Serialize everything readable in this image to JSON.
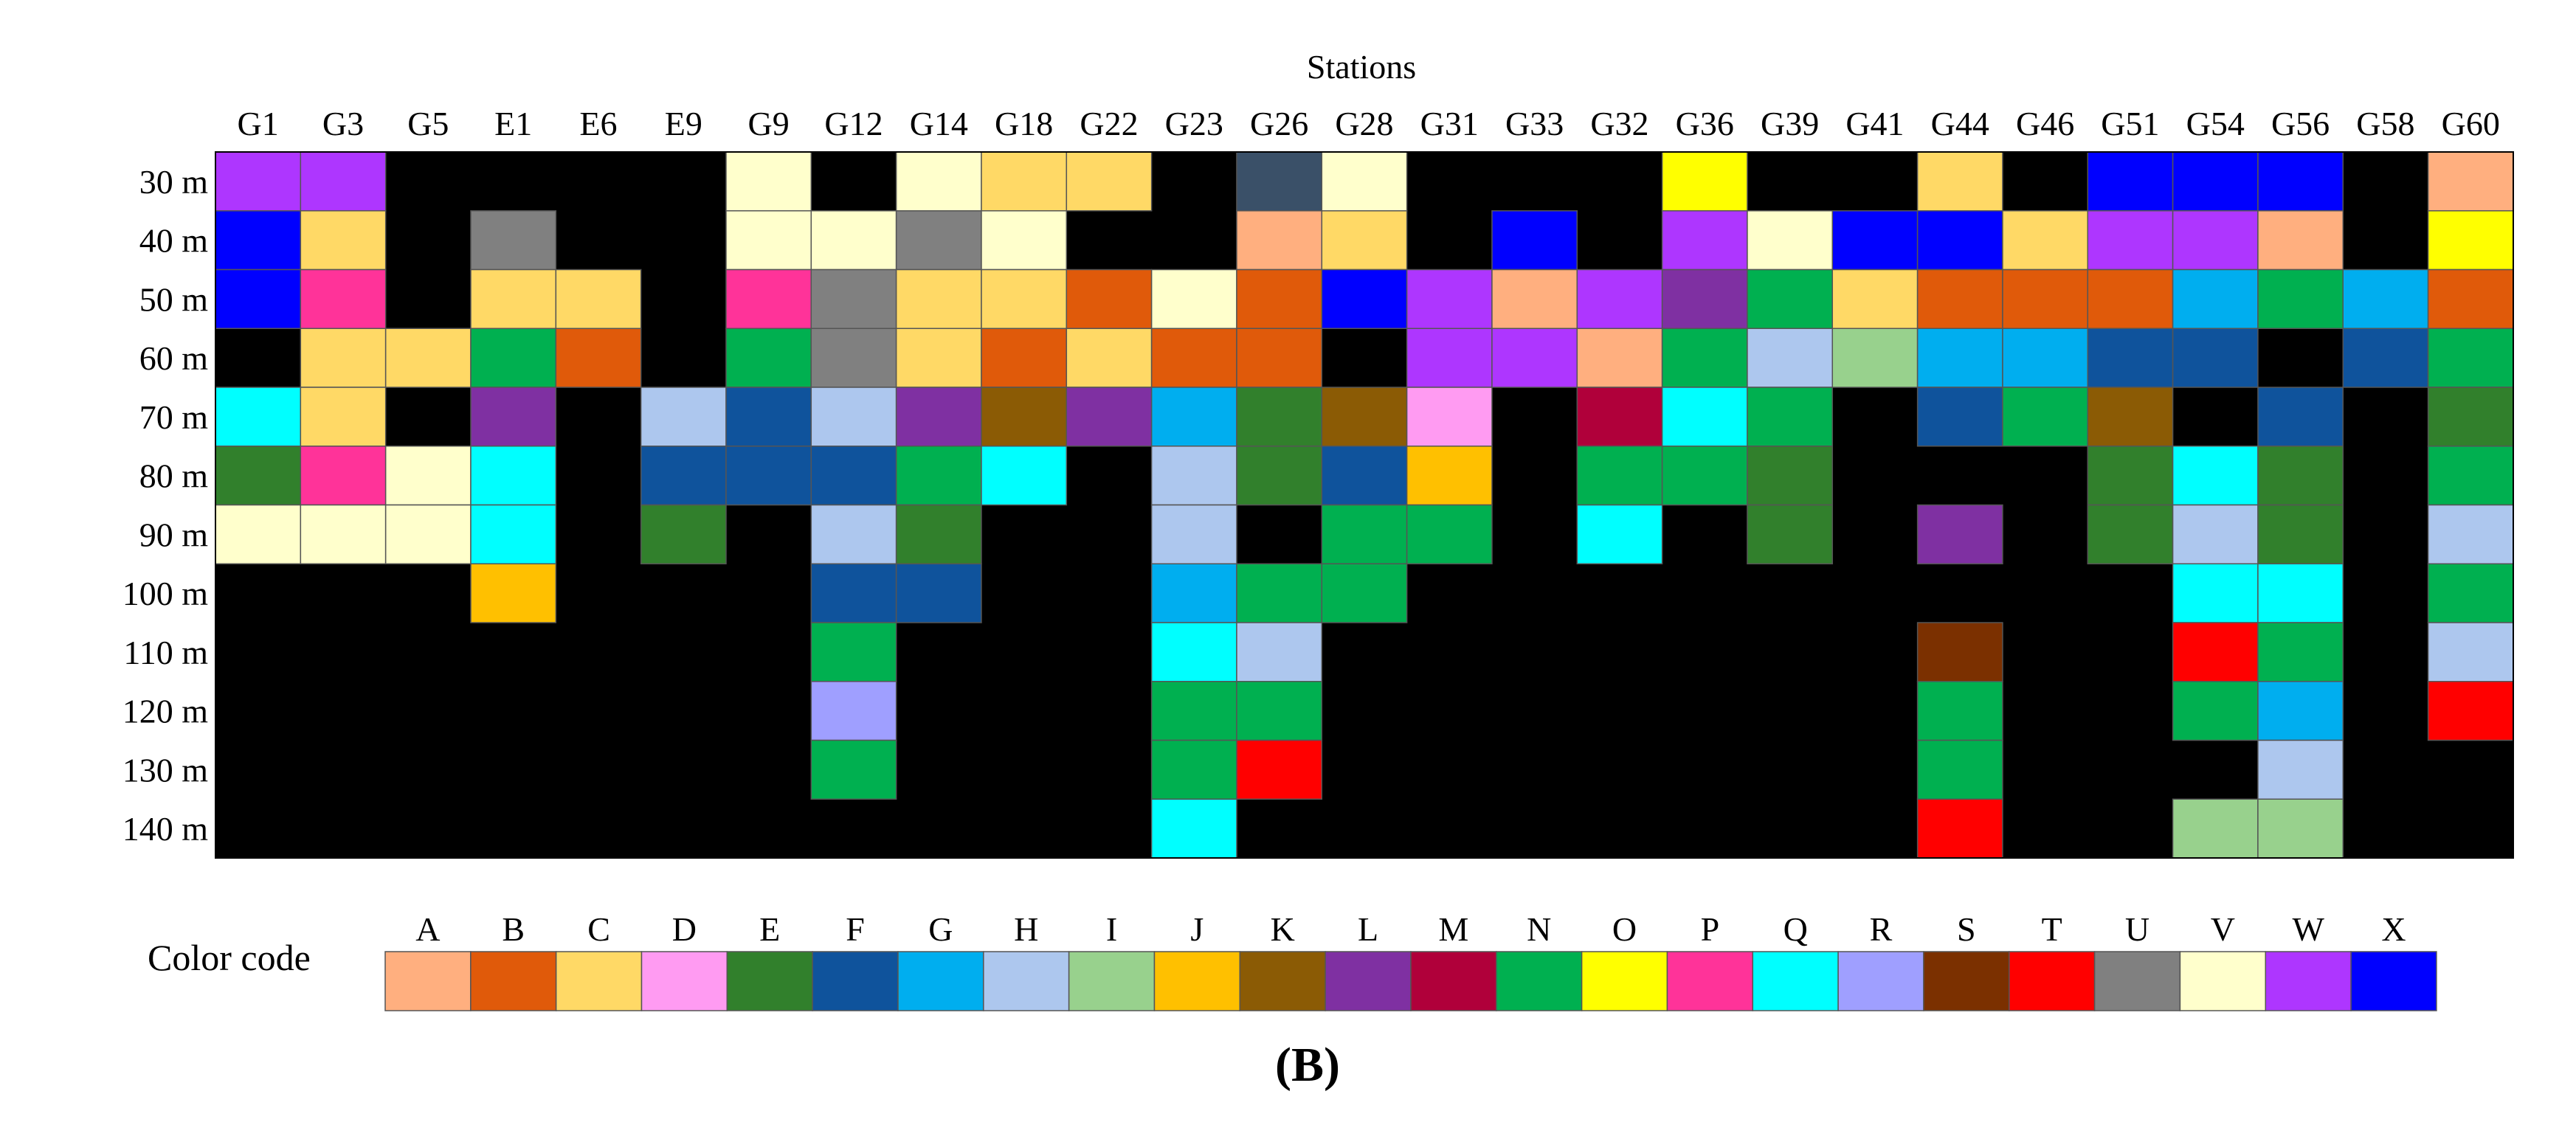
{
  "chart_data": {
    "type": "heatmap",
    "title": "Stations",
    "panel_label": "(B)",
    "legend_title": "Color code",
    "stations": [
      "G1",
      "G3",
      "G5",
      "E1",
      "E6",
      "E9",
      "G9",
      "G12",
      "G14",
      "G18",
      "G22",
      "G23",
      "G26",
      "G28",
      "G31",
      "G33",
      "G32",
      "G36",
      "G39",
      "G41",
      "G44",
      "G46",
      "G51",
      "G54",
      "G56",
      "G58",
      "G60"
    ],
    "depths": [
      "30 m",
      "40 m",
      "50 m",
      "60 m",
      "70 m",
      "80 m",
      "90 m",
      "100 m",
      "110 m",
      "120 m",
      "130 m",
      "140 m"
    ],
    "empty_color": "#000000",
    "codes": [
      {
        "code": "A",
        "color": "#FFAF7F"
      },
      {
        "code": "B",
        "color": "#E05A0A"
      },
      {
        "code": "C",
        "color": "#FFD966"
      },
      {
        "code": "D",
        "color": "#FF9BF2"
      },
      {
        "code": "E",
        "color": "#31802C"
      },
      {
        "code": "F",
        "color": "#0F539C"
      },
      {
        "code": "G",
        "color": "#00AEEF"
      },
      {
        "code": "H",
        "color": "#ADC7EE"
      },
      {
        "code": "I",
        "color": "#98D18D"
      },
      {
        "code": "J",
        "color": "#FFC000"
      },
      {
        "code": "K",
        "color": "#8B5B05"
      },
      {
        "code": "L",
        "color": "#7F30A2"
      },
      {
        "code": "M",
        "color": "#B0003A"
      },
      {
        "code": "N",
        "color": "#00B050"
      },
      {
        "code": "O",
        "color": "#FFFF00"
      },
      {
        "code": "P",
        "color": "#FF3399"
      },
      {
        "code": "Q",
        "color": "#00FFFF"
      },
      {
        "code": "R",
        "color": "#9F9FFF"
      },
      {
        "code": "S",
        "color": "#7B3000"
      },
      {
        "code": "T",
        "color": "#FF0000"
      },
      {
        "code": "U",
        "color": "#808080"
      },
      {
        "code": "V",
        "color": "#FFFFCC"
      },
      {
        "code": "W",
        "color": "#AE36FF"
      },
      {
        "code": "X",
        "color": "#0000FF"
      }
    ],
    "special_colors": {
      "G26_30m": "#3A5068"
    },
    "grid": [
      [
        "W",
        "X",
        "X",
        "-",
        "Q",
        "E",
        "V",
        "-",
        "-",
        "-",
        "-",
        "-"
      ],
      [
        "W",
        "C",
        "P",
        "C",
        "C",
        "P",
        "V",
        "-",
        "-",
        "-",
        "-",
        "-"
      ],
      [
        "-",
        "-",
        "-",
        "C",
        "-",
        "V",
        "V",
        "-",
        "-",
        "-",
        "-",
        "-"
      ],
      [
        "-",
        "U",
        "C",
        "N",
        "L",
        "Q",
        "Q",
        "J",
        "-",
        "-",
        "-",
        "-"
      ],
      [
        "-",
        "-",
        "C",
        "B",
        "-",
        "-",
        "-",
        "-",
        "-",
        "-",
        "-",
        "-"
      ],
      [
        "-",
        "-",
        "-",
        "-",
        "H",
        "F",
        "E",
        "-",
        "-",
        "-",
        "-",
        "-"
      ],
      [
        "V",
        "V",
        "P",
        "N",
        "F",
        "F",
        "-",
        "-",
        "-",
        "-",
        "-",
        "-"
      ],
      [
        "-",
        "V",
        "U",
        "U",
        "H",
        "F",
        "H",
        "F",
        "N",
        "R",
        "N",
        "-"
      ],
      [
        "V",
        "U",
        "C",
        "C",
        "L",
        "N",
        "E",
        "F",
        "-",
        "-",
        "-",
        "-"
      ],
      [
        "C",
        "V",
        "C",
        "B",
        "K",
        "Q",
        "-",
        "-",
        "-",
        "-",
        "-",
        "-"
      ],
      [
        "C",
        "-",
        "B",
        "C",
        "L",
        "-",
        "-",
        "-",
        "-",
        "-",
        "-",
        "-"
      ],
      [
        "-",
        "-",
        "V",
        "B",
        "G",
        "H",
        "H",
        "G",
        "Q",
        "N",
        "N",
        "Q"
      ],
      [
        "*",
        "A",
        "B",
        "B",
        "E",
        "E",
        "-",
        "N",
        "H",
        "N",
        "T",
        "-"
      ],
      [
        "V",
        "C",
        "X",
        "-",
        "K",
        "F",
        "N",
        "N",
        "-",
        "-",
        "-",
        "-"
      ],
      [
        "-",
        "-",
        "W",
        "W",
        "D",
        "J",
        "N",
        "-",
        "-",
        "-",
        "-",
        "-"
      ],
      [
        "-",
        "X",
        "A",
        "W",
        "-",
        "-",
        "-",
        "-",
        "-",
        "-",
        "-",
        "-"
      ],
      [
        "-",
        "-",
        "W",
        "A",
        "M",
        "N",
        "Q",
        "-",
        "-",
        "-",
        "-",
        "-"
      ],
      [
        "O",
        "W",
        "L",
        "N",
        "Q",
        "N",
        "-",
        "-",
        "-",
        "-",
        "-",
        "-"
      ],
      [
        "-",
        "V",
        "N",
        "H",
        "N",
        "E",
        "E",
        "-",
        "-",
        "-",
        "-",
        "-"
      ],
      [
        "-",
        "X",
        "C",
        "I",
        "-",
        "-",
        "-",
        "-",
        "-",
        "-",
        "-",
        "-"
      ],
      [
        "C",
        "X",
        "B",
        "G",
        "F",
        "-",
        "L",
        "-",
        "S",
        "N",
        "N",
        "T"
      ],
      [
        "-",
        "C",
        "B",
        "G",
        "N",
        "-",
        "-",
        "-",
        "-",
        "-",
        "-",
        "-"
      ],
      [
        "X",
        "W",
        "B",
        "F",
        "K",
        "E",
        "E",
        "-",
        "-",
        "-",
        "-",
        "-"
      ],
      [
        "X",
        "W",
        "G",
        "F",
        "-",
        "Q",
        "H",
        "Q",
        "T",
        "N",
        "-",
        "I"
      ],
      [
        "X",
        "A",
        "N",
        "-",
        "F",
        "E",
        "E",
        "Q",
        "N",
        "G",
        "H",
        "I"
      ],
      [
        "-",
        "-",
        "G",
        "F",
        "-",
        "-",
        "-",
        "-",
        "-",
        "-",
        "-",
        "-"
      ],
      [
        "A",
        "O",
        "B",
        "N",
        "E",
        "N",
        "H",
        "N",
        "H",
        "T",
        "-",
        "-"
      ]
    ]
  }
}
